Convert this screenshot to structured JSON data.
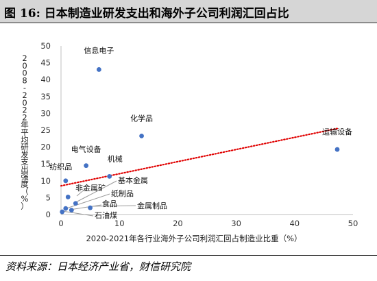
{
  "title": "图 16: 日本制造业研发支出和海外子公司利润汇回占比",
  "source": "资料来源：日本经济产业省，财信研究院",
  "chart_data": {
    "type": "scatter",
    "xlabel": "2020-2021年各行业海外子公司利润汇回占制造业比重（%）",
    "ylabel": "2008-2022年平均研发支出强度（%）",
    "xlim": [
      0,
      50
    ],
    "ylim": [
      0,
      50
    ],
    "xticks": [
      "0",
      "10",
      "20",
      "30",
      "40",
      "50"
    ],
    "yticks": [
      "0",
      "5",
      "10",
      "15",
      "20",
      "25",
      "30",
      "35",
      "40",
      "45",
      "50"
    ],
    "grid": false,
    "trendline": {
      "style": "dotted",
      "color": "#e00000",
      "x": [
        0,
        47.3
      ],
      "y": [
        8.5,
        25.5
      ]
    },
    "point_color": "#4472c4",
    "points": [
      {
        "label": "信息电子",
        "x": 6.5,
        "y": 43.0
      },
      {
        "label": "化学品",
        "x": 13.8,
        "y": 23.3
      },
      {
        "label": "运输设备",
        "x": 47.3,
        "y": 19.3
      },
      {
        "label": "电气设备",
        "x": 4.3,
        "y": 14.5
      },
      {
        "label": "机械",
        "x": 8.3,
        "y": 11.3
      },
      {
        "label": "纺织品",
        "x": 0.8,
        "y": 10.0
      },
      {
        "label": "非金属矿",
        "x": 1.2,
        "y": 5.2
      },
      {
        "label": "基本金属",
        "x": 2.5,
        "y": 3.3
      },
      {
        "label": "纸制品",
        "x": 0.8,
        "y": 1.8
      },
      {
        "label": "食品",
        "x": 1.8,
        "y": 1.3
      },
      {
        "label": "金属制品",
        "x": 5.0,
        "y": 2.0
      },
      {
        "label": "石油煤",
        "x": 0.2,
        "y": 0.8
      }
    ]
  }
}
